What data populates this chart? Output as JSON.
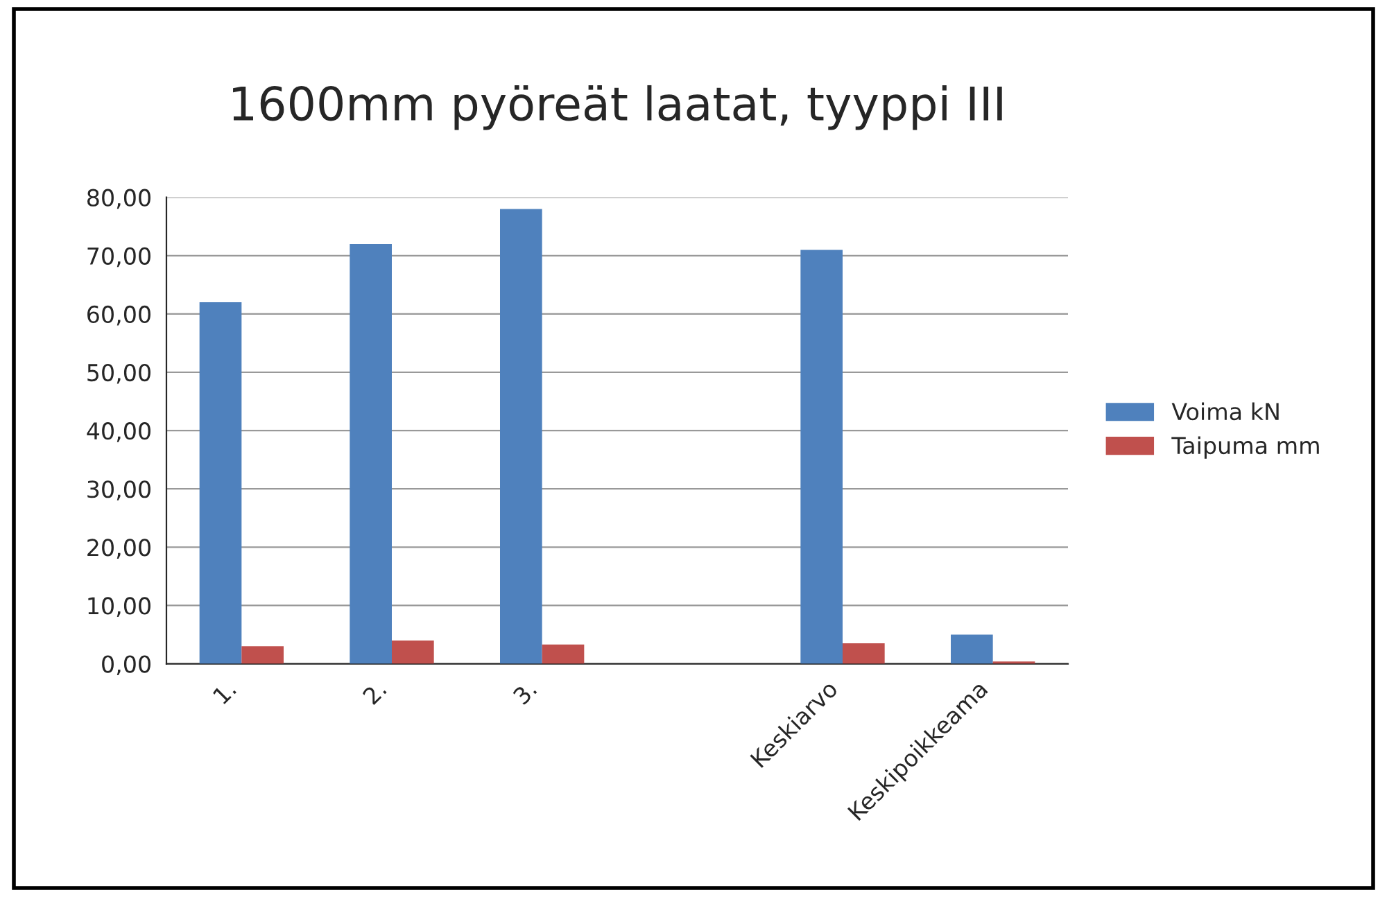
{
  "chart_data": {
    "type": "bar",
    "title": "1600mm pyöreät laatat, tyyppi III",
    "categories": [
      "1.",
      "2.",
      "3.",
      null,
      "Keskiarvo",
      "Keskipoikkeama"
    ],
    "series": [
      {
        "name": "Voima kN",
        "color": "#4f81bd",
        "values": [
          62,
          72,
          78,
          null,
          71,
          5
        ]
      },
      {
        "name": "Taipuma mm",
        "color": "#c0504d",
        "values": [
          3,
          4,
          3.3,
          null,
          3.5,
          0.4
        ]
      }
    ],
    "ylim": [
      0,
      80
    ],
    "yticks": [
      {
        "value": 0,
        "label": "0,00"
      },
      {
        "value": 10,
        "label": "10,00"
      },
      {
        "value": 20,
        "label": "20,00"
      },
      {
        "value": 30,
        "label": "30,00"
      },
      {
        "value": 40,
        "label": "40,00"
      },
      {
        "value": 50,
        "label": "50,00"
      },
      {
        "value": 60,
        "label": "60,00"
      },
      {
        "value": 70,
        "label": "70,00"
      },
      {
        "value": 80,
        "label": "80,00"
      }
    ],
    "grid": "y",
    "legend": "right"
  }
}
